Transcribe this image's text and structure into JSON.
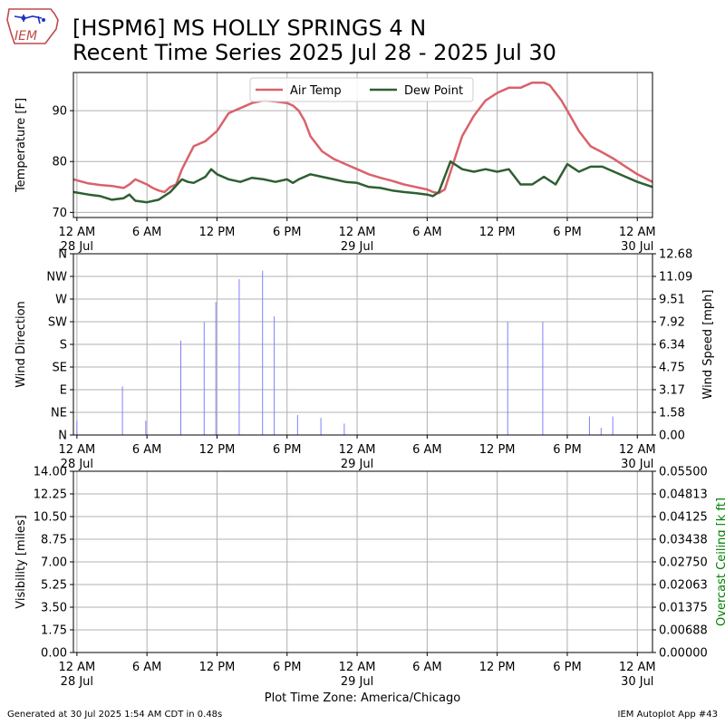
{
  "header": {
    "title_line1": "[HSPM6] MS HOLLY SPRINGS 4 N",
    "title_line2": "Recent Time Series 2025 Jul 28 - 2025 Jul 30",
    "logo_text": "IEM"
  },
  "footer": {
    "generated": "Generated at 30 Jul 2025 1:54 AM CDT in 0.48s",
    "app": "IEM Autoplot App #43",
    "x_caption": "Plot Time Zone: America/Chicago"
  },
  "colors": {
    "air_temp": "#d9626b",
    "dew_point": "#2f5f31",
    "wind_bar": "#8080ff",
    "grid": "#b0b0b0",
    "ceiling_axis": "#008000"
  },
  "chart_data": [
    {
      "type": "line",
      "xlabel": "",
      "ylabel": "Temperature [F]",
      "xlim": [
        -0.3,
        49.3
      ],
      "ylim": [
        69,
        97.5
      ],
      "yticks": [
        70,
        80,
        90
      ],
      "grid": true,
      "legend_position": "top-center",
      "x_tick_labels": [
        "12 AM",
        "6 AM",
        "12 PM",
        "6 PM",
        "12 AM",
        "6 AM",
        "12 PM",
        "6 PM",
        "12 AM"
      ],
      "x_tick_hours": [
        0,
        6,
        12,
        18,
        24,
        30,
        36,
        42,
        48
      ],
      "x_sub_labels": [
        {
          "hour": 0,
          "label": "28 Jul"
        },
        {
          "hour": 24,
          "label": "29 Jul"
        },
        {
          "hour": 48,
          "label": "30 Jul"
        }
      ],
      "series": [
        {
          "name": "Air Temp",
          "x": [
            -0.3,
            1,
            2,
            3,
            4,
            4.5,
            5,
            6,
            6.5,
            7,
            7.5,
            8,
            8.5,
            9,
            10,
            11,
            11.5,
            12,
            13,
            14,
            15,
            16,
            17,
            18,
            18.5,
            19,
            19.5,
            20,
            21,
            22,
            23,
            24,
            25,
            26,
            27,
            28,
            29,
            30,
            30.5,
            31,
            31.5,
            32,
            33,
            34,
            35,
            36,
            37,
            38,
            39,
            40,
            40.5,
            41,
            41.5,
            42,
            43,
            44,
            45,
            46,
            47,
            48,
            49.3
          ],
          "y": [
            76.5,
            75.7,
            75.4,
            75.2,
            74.8,
            75.5,
            76.5,
            75.5,
            74.8,
            74.3,
            74.0,
            75.0,
            75.5,
            78.5,
            83.0,
            84.0,
            85.0,
            86.0,
            89.5,
            90.5,
            91.5,
            92.0,
            91.8,
            91.5,
            91.0,
            90.0,
            88.0,
            85.0,
            82.0,
            80.5,
            79.5,
            78.5,
            77.5,
            76.8,
            76.2,
            75.5,
            75.0,
            74.5,
            74.0,
            73.8,
            74.5,
            78.0,
            85.0,
            89.0,
            92.0,
            93.5,
            94.5,
            94.5,
            95.5,
            95.5,
            95.0,
            93.5,
            92.0,
            90.0,
            86.0,
            83.0,
            81.8,
            80.5,
            79.0,
            77.5,
            76.0
          ]
        },
        {
          "name": "Dew Point",
          "x": [
            -0.3,
            1,
            2,
            3,
            4,
            4.5,
            5,
            6,
            7,
            8,
            9,
            9.5,
            10,
            11,
            11.5,
            12,
            13,
            14,
            15,
            16,
            17,
            18,
            18.5,
            19,
            20,
            21,
            22,
            23,
            24,
            25,
            26,
            27,
            28,
            29,
            30,
            30.5,
            31,
            32,
            33,
            34,
            35,
            36,
            37,
            38,
            39,
            40,
            41,
            42,
            43,
            44,
            45,
            46,
            47,
            48,
            49.3
          ],
          "y": [
            74.0,
            73.5,
            73.2,
            72.5,
            72.8,
            73.5,
            72.3,
            72.0,
            72.5,
            74.0,
            76.5,
            76.0,
            75.8,
            77.0,
            78.5,
            77.5,
            76.5,
            76.0,
            76.8,
            76.5,
            76.0,
            76.5,
            75.8,
            76.5,
            77.5,
            77.0,
            76.5,
            76.0,
            75.8,
            75.0,
            74.8,
            74.3,
            74.0,
            73.8,
            73.5,
            73.2,
            74.0,
            80.0,
            78.5,
            78.0,
            78.5,
            78.0,
            78.5,
            75.5,
            75.5,
            77.0,
            75.5,
            79.5,
            78.0,
            79.0,
            79.0,
            78.0,
            77.0,
            76.0,
            75.0
          ]
        }
      ]
    },
    {
      "type": "bar",
      "xlabel": "",
      "ylabel": "Wind Direction",
      "y2label": "Wind Speed [mph]",
      "xlim": [
        -0.3,
        49.3
      ],
      "ylim": [
        0,
        12.68
      ],
      "yticks_direction": [
        "N",
        "NE",
        "E",
        "SE",
        "S",
        "SW",
        "W",
        "NW",
        "N"
      ],
      "yticks_speed": [
        "0.00",
        "1.58",
        "3.17",
        "4.75",
        "6.34",
        "7.92",
        "9.51",
        "11.09",
        "12.68"
      ],
      "grid": true,
      "x_tick_labels": [
        "12 AM",
        "6 AM",
        "12 PM",
        "6 PM",
        "12 AM",
        "6 AM",
        "12 PM",
        "6 PM",
        "12 AM"
      ],
      "x_tick_hours": [
        0,
        6,
        12,
        18,
        24,
        30,
        36,
        42,
        48
      ],
      "x_sub_labels": [
        {
          "hour": 0,
          "label": "28 Jul"
        },
        {
          "hour": 24,
          "label": "29 Jul"
        },
        {
          "hour": 48,
          "label": "30 Jul"
        }
      ],
      "series": [
        {
          "x": [
            0,
            3.9,
            5.9,
            8.9,
            10.9,
            11.9,
            13.9,
            15.9,
            16.9,
            18.9,
            20.9,
            22.9,
            24.0,
            36.9,
            39.9,
            43.9,
            44.9,
            45.9,
            46.9
          ],
          "values": [
            1.0,
            3.4,
            1.0,
            6.6,
            7.9,
            9.3,
            10.9,
            11.5,
            8.3,
            1.4,
            1.2,
            0.8,
            0.0,
            7.9,
            7.9,
            1.3,
            0.5,
            1.3,
            0.0
          ]
        }
      ]
    },
    {
      "type": "line",
      "xlabel": "Plot Time Zone: America/Chicago",
      "ylabel": "Visibility [miles]",
      "y2label": "Overcast Ceiling [k ft]",
      "xlim": [
        -0.3,
        49.3
      ],
      "ylim": [
        0,
        14
      ],
      "y2lim": [
        0,
        0.055
      ],
      "yticks_left": [
        "0.00",
        "1.75",
        "3.50",
        "5.25",
        "7.00",
        "8.75",
        "10.50",
        "12.25",
        "14.00"
      ],
      "yticks_right": [
        "0.00000",
        "0.00688",
        "0.01375",
        "0.02063",
        "0.02750",
        "0.03438",
        "0.04125",
        "0.04813",
        "0.05500"
      ],
      "grid": true,
      "x_tick_labels": [
        "12 AM",
        "6 AM",
        "12 PM",
        "6 PM",
        "12 AM",
        "6 AM",
        "12 PM",
        "6 PM",
        "12 AM"
      ],
      "x_tick_hours": [
        0,
        6,
        12,
        18,
        24,
        30,
        36,
        42,
        48
      ],
      "x_sub_labels": [
        {
          "hour": 0,
          "label": "28 Jul"
        },
        {
          "hour": 24,
          "label": "29 Jul"
        },
        {
          "hour": 48,
          "label": "30 Jul"
        }
      ],
      "series": []
    }
  ]
}
